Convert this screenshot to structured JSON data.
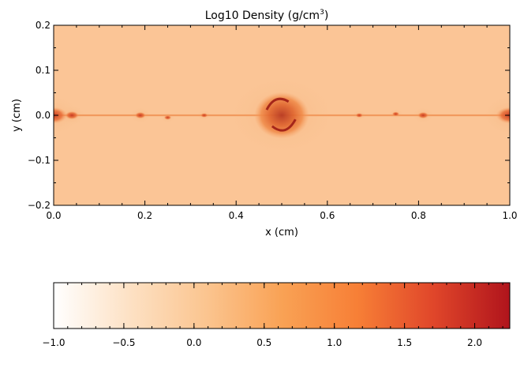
{
  "chart_data": [
    {
      "type": "heatmap",
      "title_main": "Log10 Density (g/cm",
      "title_sup": "3",
      "title_close": ")",
      "xlabel": "x (cm)",
      "ylabel": "y (cm)",
      "xlim": [
        0.0,
        1.0
      ],
      "ylim": [
        -0.2,
        0.2
      ],
      "x_ticks": [
        0.0,
        0.2,
        0.4,
        0.6,
        0.8,
        1.0
      ],
      "x_tick_labels": [
        "0.0",
        "0.2",
        "0.4",
        "0.6",
        "0.8",
        "1.0"
      ],
      "y_ticks": [
        -0.2,
        -0.1,
        0.0,
        0.1,
        0.2
      ],
      "y_tick_labels": [
        "−0.2",
        "−0.1",
        "0.0",
        "0.1",
        "0.2"
      ],
      "field_description": "thin dense filament along y=0 with clumps; large vortex at x=0.5",
      "features": [
        {
          "x": 0.0,
          "y": 0.0,
          "r": 0.03,
          "value": 1.2
        },
        {
          "x": 0.04,
          "y": 0.0,
          "r": 0.015,
          "value": 1.0
        },
        {
          "x": 0.19,
          "y": 0.0,
          "r": 0.012,
          "value": 1.5
        },
        {
          "x": 0.25,
          "y": -0.005,
          "r": 0.008,
          "value": 1.2
        },
        {
          "x": 0.33,
          "y": 0.0,
          "r": 0.008,
          "value": 0.9
        },
        {
          "x": 0.5,
          "y": 0.0,
          "r": 0.06,
          "value": 1.6
        },
        {
          "x": 0.67,
          "y": 0.0,
          "r": 0.008,
          "value": 0.9
        },
        {
          "x": 0.75,
          "y": 0.003,
          "r": 0.008,
          "value": 1.1
        },
        {
          "x": 0.81,
          "y": 0.0,
          "r": 0.012,
          "value": 1.4
        },
        {
          "x": 1.0,
          "y": 0.0,
          "r": 0.03,
          "value": 1.2
        }
      ],
      "background_value": 0.35
    },
    {
      "type": "colorbar",
      "range": [
        -1.0,
        2.25
      ],
      "ticks": [
        -1.0,
        -0.5,
        0.0,
        0.5,
        1.0,
        1.5,
        2.0
      ],
      "tick_labels": [
        "−1.0",
        "−0.5",
        "0.0",
        "0.5",
        "1.0",
        "1.5",
        "2.0"
      ],
      "colors": [
        "#ffffff",
        "#fde1c4",
        "#fbc590",
        "#f9a255",
        "#f77f36",
        "#e0462a",
        "#b0141c"
      ]
    }
  ]
}
